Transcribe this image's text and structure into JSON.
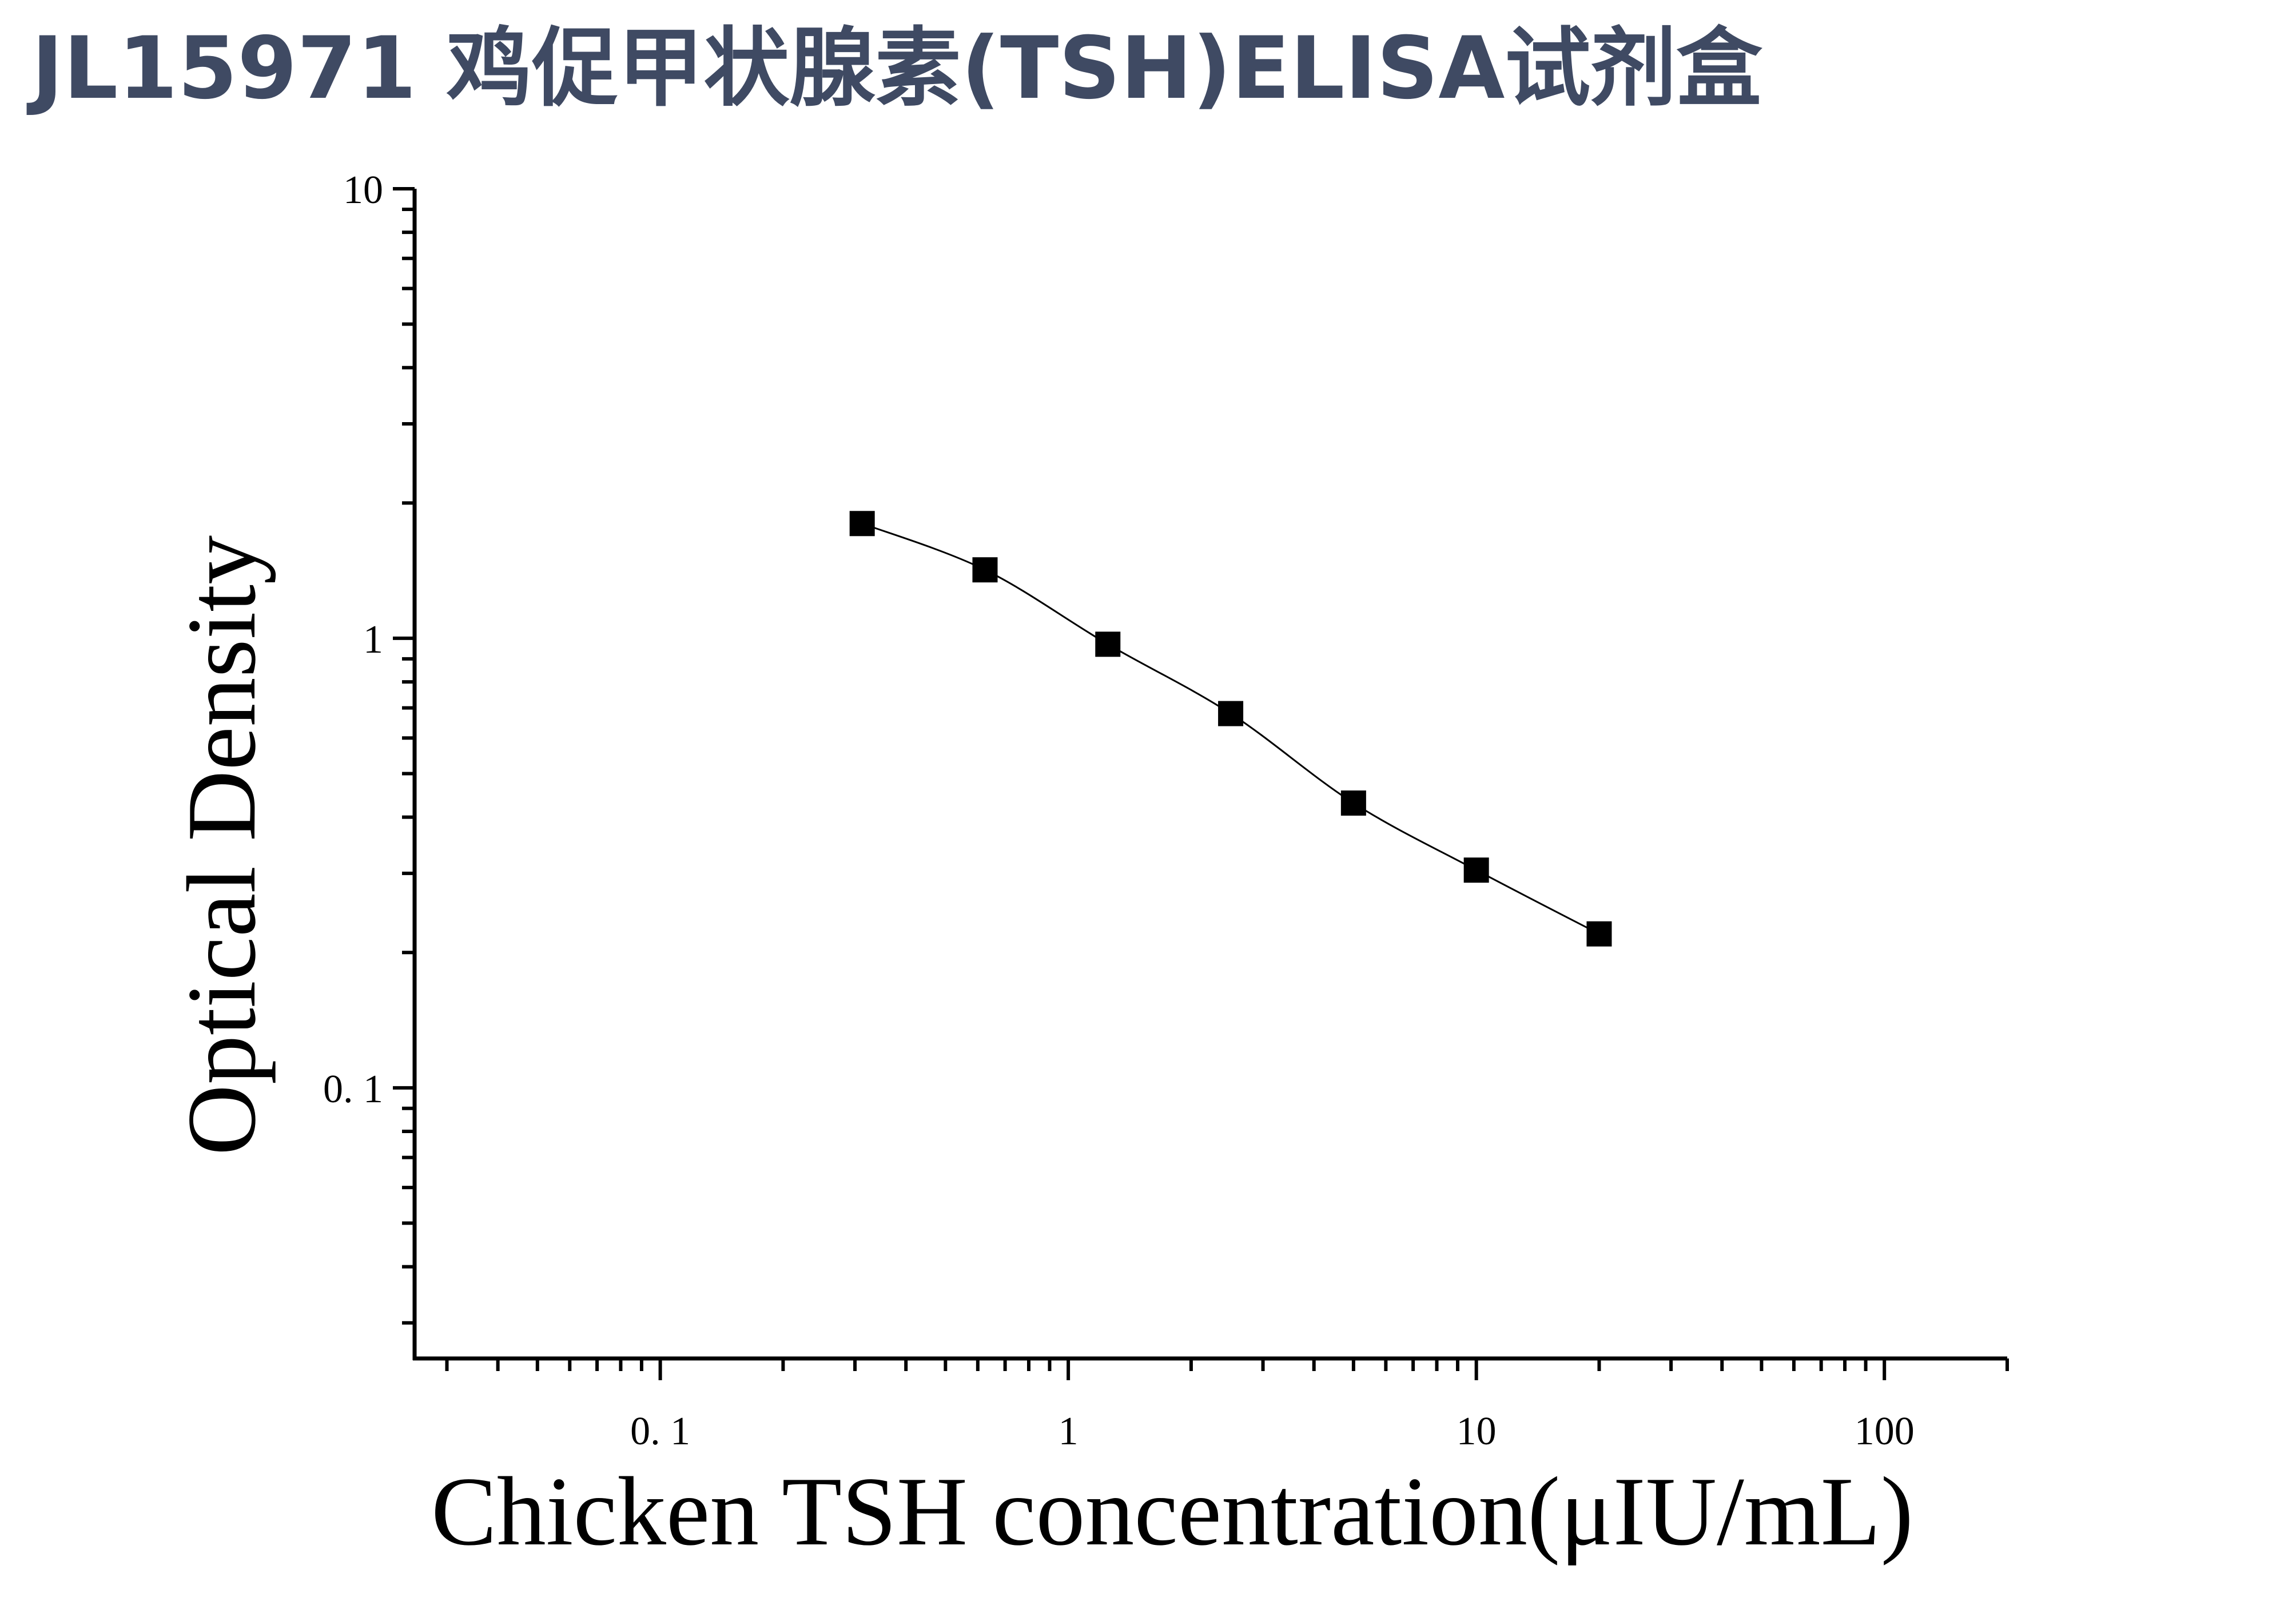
{
  "title": "JL15971 鸡促甲状腺素(TSH)ELISA试剂盒",
  "chart_data": {
    "type": "scatter",
    "xlabel": "Chicken TSH concentration(μIU/mL)",
    "ylabel": "Optical Density",
    "xscale": "log",
    "yscale": "log",
    "xlim": [
      0.025,
      200
    ],
    "ylim": [
      0.025,
      10
    ],
    "xticks": [
      0.1,
      1,
      10,
      100
    ],
    "xtick_labels": [
      "0. 1",
      "1",
      "10",
      "100"
    ],
    "yticks": [
      0.1,
      1,
      10
    ],
    "ytick_labels": [
      "0. 1",
      "1",
      "10"
    ],
    "grid": false,
    "legend": "none",
    "series": [
      {
        "x": [
          0.3125,
          0.625,
          1.25,
          2.5,
          5,
          10,
          20
        ],
        "y": [
          1.8,
          1.42,
          0.97,
          0.68,
          0.43,
          0.305,
          0.22
        ],
        "marker": "square",
        "fit_line": true,
        "color": "#000000"
      }
    ]
  }
}
